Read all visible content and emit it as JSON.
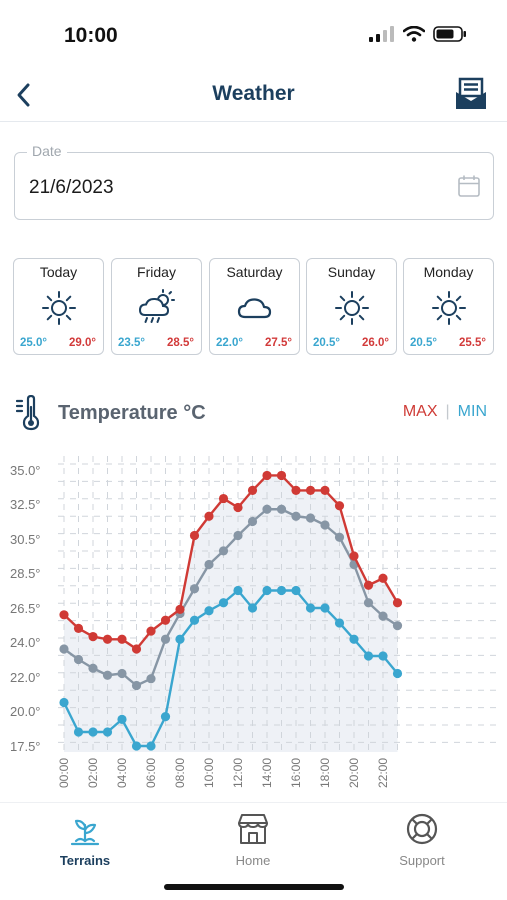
{
  "status_bar": {
    "time": "10:00"
  },
  "header": {
    "title": "Weather"
  },
  "date_field": {
    "label": "Date",
    "value": "21/6/2023"
  },
  "forecast": [
    {
      "day": "Today",
      "icon": "sun-icon",
      "min": "25.0°",
      "max": "29.0°"
    },
    {
      "day": "Friday",
      "icon": "cloud-rain-sun-icon",
      "min": "23.5°",
      "max": "28.5°"
    },
    {
      "day": "Saturday",
      "icon": "cloud-icon",
      "min": "22.0°",
      "max": "27.5°"
    },
    {
      "day": "Sunday",
      "icon": "sun-icon",
      "min": "20.5°",
      "max": "26.0°"
    },
    {
      "day": "Monday",
      "icon": "sun-icon",
      "min": "20.5°",
      "max": "25.5°"
    }
  ],
  "temperature_section": {
    "title": "Temperature °C",
    "legend_max": "MAX",
    "legend_sep": "|",
    "legend_min": "MIN"
  },
  "chart_data": {
    "type": "line",
    "x": [
      "00:00",
      "01:00",
      "02:00",
      "03:00",
      "04:00",
      "05:00",
      "06:00",
      "07:00",
      "08:00",
      "09:00",
      "10:00",
      "11:00",
      "12:00",
      "13:00",
      "14:00",
      "15:00",
      "16:00",
      "17:00",
      "18:00",
      "19:00",
      "20:00",
      "21:00",
      "22:00",
      "23:00"
    ],
    "x_tick_labels": [
      "00:00",
      "02:00",
      "04:00",
      "06:00",
      "08:00",
      "10:00",
      "12:00",
      "14:00",
      "16:00",
      "18:00",
      "20:00",
      "22:00"
    ],
    "y_tick_labels": [
      "35.0°",
      "32.5°",
      "30.5°",
      "28.5°",
      "26.5°",
      "24.0°",
      "22.0°",
      "20.0°",
      "17.5°"
    ],
    "y_tick_values": [
      35.0,
      32.5,
      30.5,
      28.5,
      26.5,
      24.0,
      22.0,
      20.0,
      17.5
    ],
    "ylim": [
      17.5,
      35.0
    ],
    "grid": true,
    "legend_position": "top-right",
    "series": [
      {
        "name": "MAX",
        "color": "#d03a35",
        "values": [
          26.0,
          25.0,
          24.4,
          24.2,
          24.2,
          23.6,
          24.8,
          25.6,
          26.4,
          30.7,
          31.8,
          32.9,
          32.3,
          33.5,
          34.6,
          34.6,
          33.5,
          33.5,
          33.5,
          32.4,
          29.5,
          27.8,
          28.2,
          26.8
        ]
      },
      {
        "name": "",
        "color": "#8796a5",
        "values": [
          23.6,
          23.0,
          22.5,
          22.1,
          22.2,
          21.5,
          21.9,
          24.2,
          26.1,
          27.6,
          29.0,
          29.8,
          30.7,
          31.5,
          32.2,
          32.2,
          31.8,
          31.7,
          31.3,
          30.6,
          29.0,
          26.8,
          25.9,
          25.2
        ]
      },
      {
        "name": "MIN",
        "color": "#3aa6cf",
        "values": [
          20.5,
          18.5,
          18.5,
          18.5,
          19.4,
          17.5,
          17.5,
          19.6,
          24.2,
          25.6,
          26.3,
          26.8,
          27.5,
          26.5,
          27.5,
          27.5,
          27.5,
          26.5,
          26.5,
          25.4,
          24.2,
          23.2,
          23.2,
          22.2
        ]
      }
    ]
  },
  "tabbar": [
    {
      "label": "Terrains",
      "icon": "plant-icon",
      "active": true
    },
    {
      "label": "Home",
      "icon": "store-icon",
      "active": false
    },
    {
      "label": "Support",
      "icon": "lifebuoy-icon",
      "active": false
    }
  ]
}
